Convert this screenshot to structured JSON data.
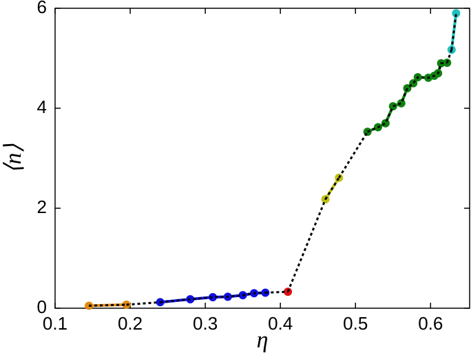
{
  "chart_data": {
    "type": "line",
    "xlabel": "η",
    "ylabel": "⟨n⟩",
    "xlim": [
      0.1,
      0.652
    ],
    "ylim": [
      0,
      6
    ],
    "xticks": [
      0.1,
      0.2,
      0.3,
      0.4,
      0.5,
      0.6
    ],
    "yticks": [
      0,
      2,
      4,
      6
    ],
    "grid": false,
    "connector_color": "#000000",
    "series": [
      {
        "color": "#e08a10",
        "x": [
          0.145,
          0.195
        ],
        "values": [
          0.05,
          0.07
        ]
      },
      {
        "color": "#1010e0",
        "x": [
          0.24,
          0.28,
          0.31,
          0.33,
          0.35,
          0.365,
          0.38
        ],
        "values": [
          0.12,
          0.18,
          0.22,
          0.23,
          0.26,
          0.3,
          0.31
        ]
      },
      {
        "color": "#e01010",
        "x": [
          0.41
        ],
        "values": [
          0.33
        ]
      },
      {
        "color": "#c0c010",
        "x": [
          0.46,
          0.478
        ],
        "values": [
          2.18,
          2.61
        ]
      },
      {
        "color": "#108010",
        "x": [
          0.516,
          0.53,
          0.54,
          0.55,
          0.561,
          0.569,
          0.577,
          0.583,
          0.597,
          0.605,
          0.61,
          0.614,
          0.622
        ],
        "values": [
          3.53,
          3.62,
          3.7,
          4.04,
          4.1,
          4.4,
          4.5,
          4.62,
          4.61,
          4.65,
          4.7,
          4.9,
          4.91
        ]
      },
      {
        "color": "#20c0c0",
        "x": [
          0.628,
          0.634
        ],
        "values": [
          5.17,
          5.9
        ]
      }
    ]
  }
}
